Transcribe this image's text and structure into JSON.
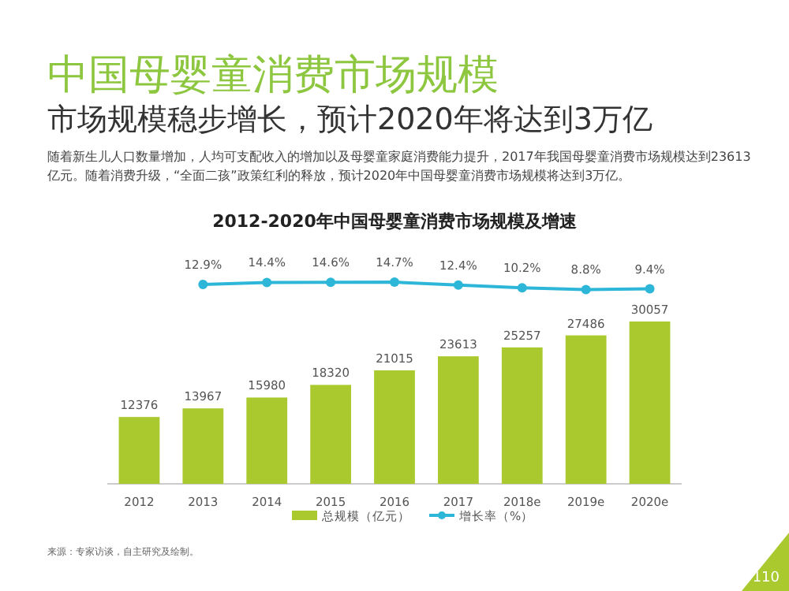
{
  "chart_data": [
    {
      "type": "line",
      "title": "中国母婴童消费市场规模",
      "subtitle": "市场规模稳步增长，预计2020年将达到3万亿",
      "annotations": [
        "随着新生儿人口数量增加，人均可支配收入的增加以及母婴童家庭消费能力提升，2017年我国母婴童消费市场规模达到23613亿元。随着消费升级，“全面二孩”政策红利的释放，预计2020年中国母婴童消费市场规模将达到3万亿。",
        "2012-2020年中国母婴童消费市场规模及增速",
        "来源：专家访谈，自主研究及绘制。",
        "110"
      ],
      "categories": [
        null,
        null,
        null,
        null,
        null,
        null,
        null,
        null,
        null
      ],
      "series": [
        {
          "name": "增长率（%）",
          "color": "#2db6d8",
          "values": [
            null,
            12.9,
            14.4,
            14.6,
            14.7,
            12.4,
            10.2,
            8.8,
            9.4
          ],
          "value_labels": [
            null,
            "12.9%",
            "14.4%",
            "14.6%",
            "14.7%",
            "12.4%",
            "10.2%",
            "8.8%",
            "9.4%"
          ]
        }
      ],
      "marker": "circle",
      "legend": "bottom",
      "tick_labels": false
    },
    {
      "type": "bar",
      "categories": [
        "2012",
        "2013",
        "2014",
        "2015",
        "2016",
        "2017",
        "2018e",
        "2019e",
        "2020e"
      ],
      "series": [
        {
          "name": "总规模（亿元）",
          "color": "#a9c92f",
          "values": [
            12376,
            13967,
            15980,
            18320,
            21015,
            23613,
            25257,
            27486,
            30057
          ]
        }
      ],
      "data_labels": true,
      "legend": "bottom",
      "tick_labels": "x"
    }
  ]
}
